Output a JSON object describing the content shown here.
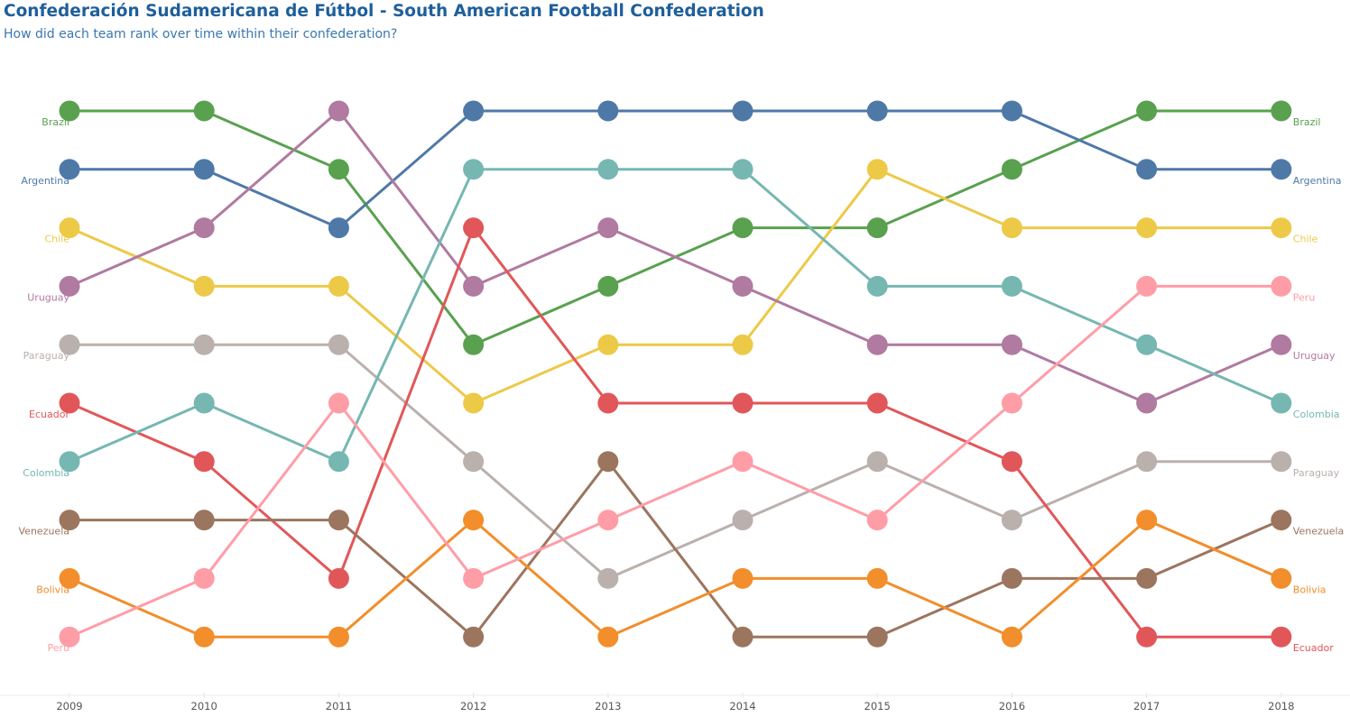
{
  "header": {
    "title": "Confederación Sudamericana de Fútbol - South American Football Confederation",
    "subtitle": "How did each team rank over time within their confederation?"
  },
  "chart_data": {
    "type": "line",
    "chart_subtype": "bump",
    "x": [
      2009,
      2010,
      2011,
      2012,
      2013,
      2014,
      2015,
      2016,
      2017,
      2018
    ],
    "y_axis": "rank",
    "y_reversed": true,
    "ylim": [
      1,
      10
    ],
    "grid": false,
    "series": [
      {
        "name": "Brazil",
        "color": "#59a14f",
        "values": [
          1,
          1,
          2,
          5,
          4,
          3,
          3,
          2,
          1,
          1
        ]
      },
      {
        "name": "Argentina",
        "color": "#4e79a7",
        "values": [
          2,
          2,
          3,
          1,
          1,
          1,
          1,
          1,
          2,
          2
        ]
      },
      {
        "name": "Chile",
        "color": "#edc948",
        "values": [
          3,
          4,
          4,
          6,
          5,
          5,
          2,
          3,
          3,
          3
        ]
      },
      {
        "name": "Uruguay",
        "color": "#b07aa1",
        "values": [
          4,
          3,
          1,
          4,
          3,
          4,
          5,
          5,
          6,
          5
        ]
      },
      {
        "name": "Paraguay",
        "color": "#bab0ac",
        "values": [
          5,
          5,
          5,
          7,
          9,
          8,
          7,
          8,
          7,
          7
        ]
      },
      {
        "name": "Ecuador",
        "color": "#e15759",
        "values": [
          6,
          7,
          9,
          3,
          6,
          6,
          6,
          7,
          10,
          10
        ]
      },
      {
        "name": "Colombia",
        "color": "#76b7b2",
        "values": [
          7,
          6,
          7,
          2,
          2,
          2,
          4,
          4,
          5,
          6
        ]
      },
      {
        "name": "Venezuela",
        "color": "#9c755f",
        "values": [
          8,
          8,
          8,
          10,
          7,
          10,
          10,
          9,
          9,
          8
        ]
      },
      {
        "name": "Bolivia",
        "color": "#f28e2b",
        "values": [
          9,
          10,
          10,
          8,
          10,
          9,
          9,
          10,
          8,
          9
        ]
      },
      {
        "name": "Peru",
        "color": "#ff9da7",
        "values": [
          10,
          9,
          6,
          9,
          8,
          7,
          8,
          6,
          4,
          4
        ]
      }
    ]
  }
}
